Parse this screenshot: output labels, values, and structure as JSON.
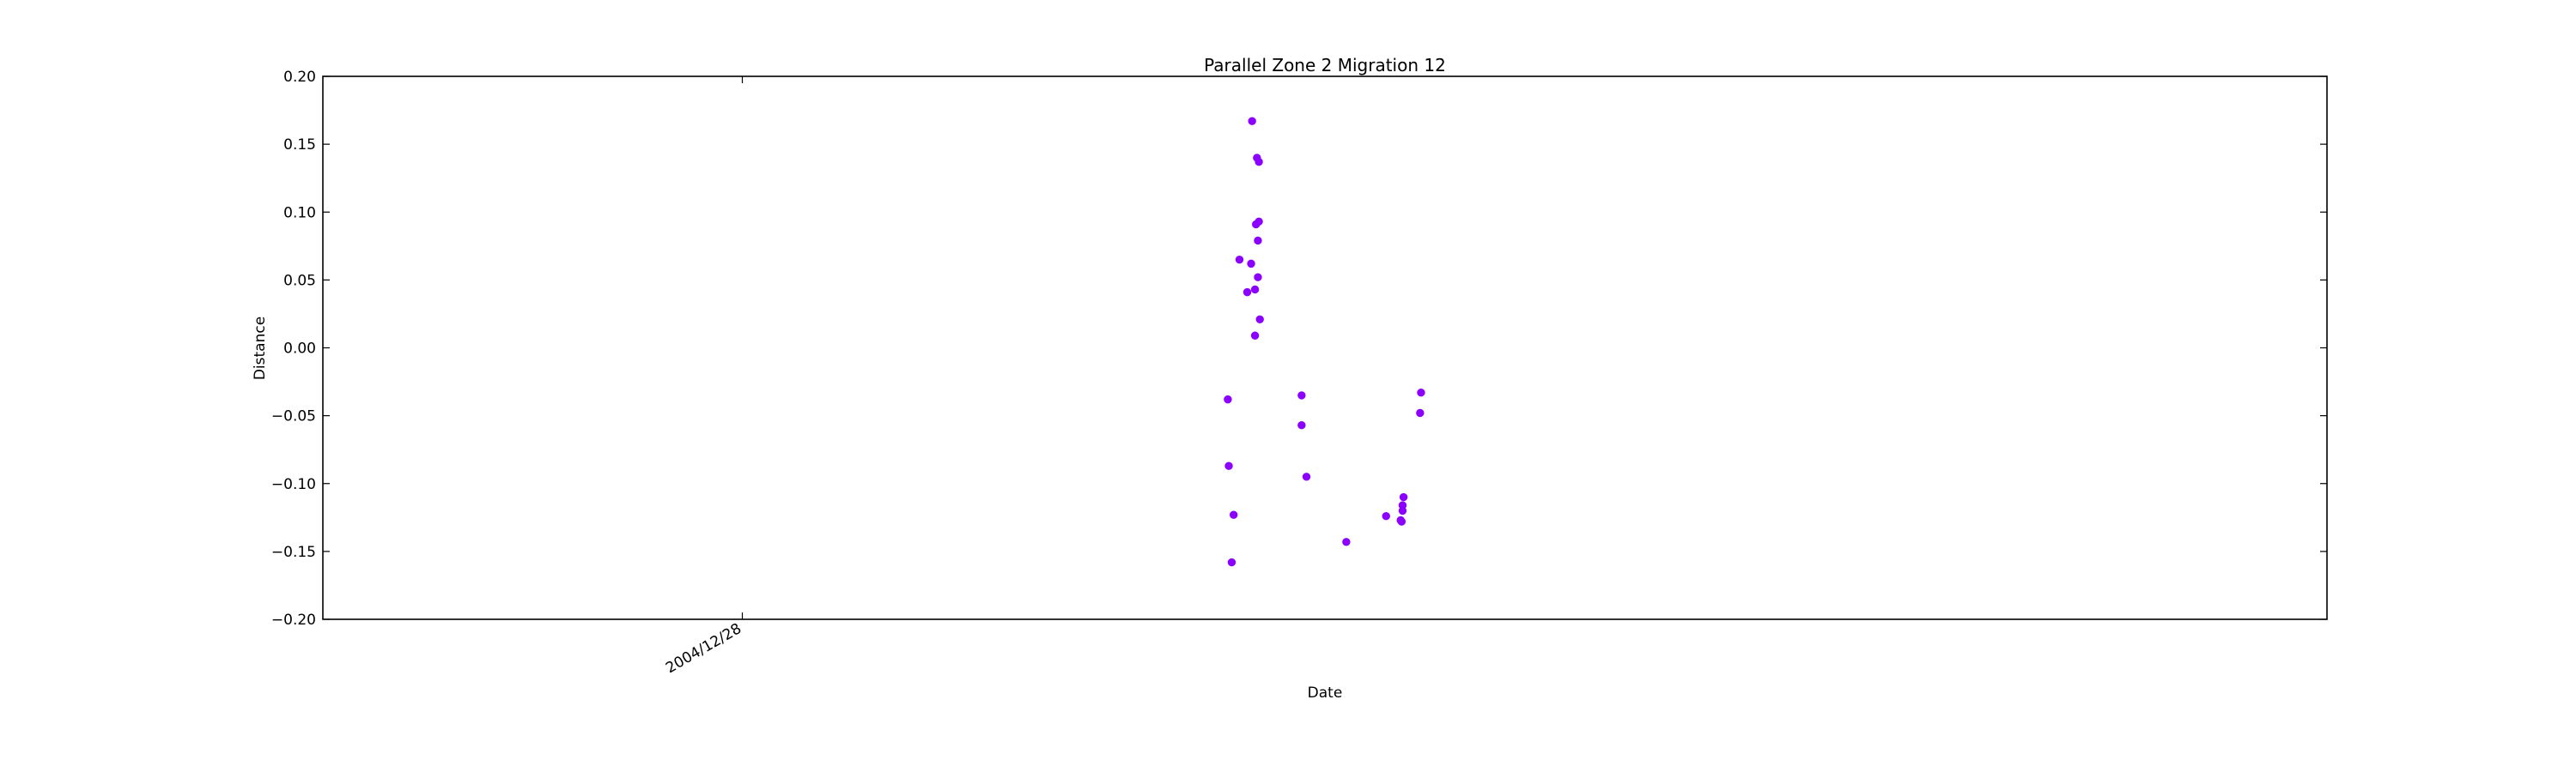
{
  "chart_data": {
    "type": "scatter",
    "title": "Parallel Zone 2 Migration 12",
    "xlabel": "Date",
    "ylabel": "Distance",
    "ylim": [
      -0.2,
      0.2
    ],
    "yticks": [
      0.2,
      0.15,
      0.1,
      0.05,
      0.0,
      -0.05,
      -0.1,
      -0.15,
      -0.2
    ],
    "ytick_labels": [
      "0.20",
      "0.15",
      "0.10",
      "0.05",
      "0.00",
      "−0.05",
      "−0.10",
      "−0.15",
      "−0.20"
    ],
    "xlim": [
      "2004/12/19",
      "2005/01/31"
    ],
    "xticks": [
      "2004/12/28"
    ],
    "xtick_labels": [
      "2004/12/28"
    ],
    "grid": false,
    "marker_color": "#8B00FF",
    "series": [
      {
        "points": [
          {
            "x": "2005/01/07 10:00",
            "y": -0.038
          },
          {
            "x": "2005/01/07 10:30",
            "y": -0.087
          },
          {
            "x": "2005/01/07 13:00",
            "y": -0.123
          },
          {
            "x": "2005/01/07 12:00",
            "y": -0.158
          },
          {
            "x": "2005/01/07 16:00",
            "y": 0.065
          },
          {
            "x": "2005/01/07 20:00",
            "y": 0.041
          },
          {
            "x": "2005/01/07 22:00",
            "y": 0.062
          },
          {
            "x": "2005/01/07 22:30",
            "y": 0.167
          },
          {
            "x": "2005/01/08 00:00",
            "y": 0.009
          },
          {
            "x": "2005/01/08 00:00",
            "y": 0.043
          },
          {
            "x": "2005/01/08 00:30",
            "y": 0.091
          },
          {
            "x": "2005/01/08 01:00",
            "y": 0.14
          },
          {
            "x": "2005/01/08 02:00",
            "y": 0.137
          },
          {
            "x": "2005/01/08 01:30",
            "y": 0.079
          },
          {
            "x": "2005/01/08 02:00",
            "y": 0.093
          },
          {
            "x": "2005/01/08 01:30",
            "y": 0.052
          },
          {
            "x": "2005/01/08 02:30",
            "y": 0.021
          },
          {
            "x": "2005/01/09 00:00",
            "y": -0.035
          },
          {
            "x": "2005/01/09 00:00",
            "y": -0.057
          },
          {
            "x": "2005/01/09 02:30",
            "y": -0.095
          },
          {
            "x": "2005/01/09 23:00",
            "y": -0.143
          },
          {
            "x": "2005/01/10 19:30",
            "y": -0.124
          },
          {
            "x": "2005/01/11 03:00",
            "y": -0.127
          },
          {
            "x": "2005/01/11 03:30",
            "y": -0.128
          },
          {
            "x": "2005/01/11 04:00",
            "y": -0.12
          },
          {
            "x": "2005/01/11 04:00",
            "y": -0.116
          },
          {
            "x": "2005/01/11 04:30",
            "y": -0.11
          },
          {
            "x": "2005/01/11 13:00",
            "y": -0.048
          },
          {
            "x": "2005/01/11 13:30",
            "y": -0.033
          }
        ]
      }
    ]
  }
}
